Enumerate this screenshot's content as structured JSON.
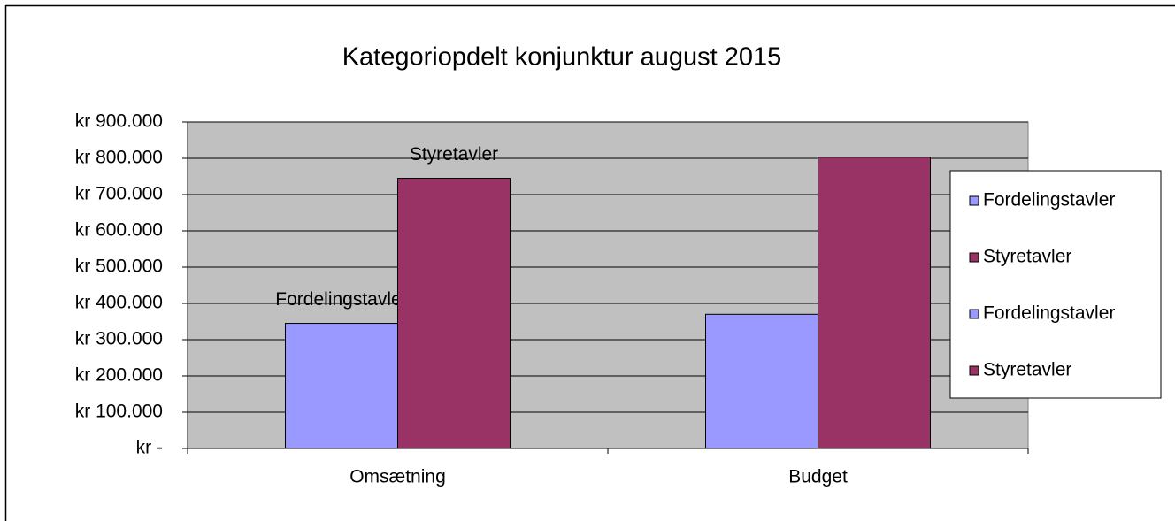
{
  "chart_data": {
    "type": "bar",
    "title": "Kategoriopdelt konjunktur august 2015",
    "categories": [
      "Omsætning",
      "Budget"
    ],
    "series": [
      {
        "name": "Fordelingstavler",
        "color": "#9999ff",
        "values": [
          345000,
          null
        ]
      },
      {
        "name": "Styretavler",
        "color": "#993366",
        "values": [
          745000,
          null
        ]
      },
      {
        "name": "Fordelingstavler",
        "color": "#9999ff",
        "values": [
          null,
          370000
        ]
      },
      {
        "name": "Styretavler",
        "color": "#993366",
        "values": [
          null,
          803000
        ]
      }
    ],
    "ylim": [
      0,
      900000
    ],
    "yticks": [
      {
        "value": 0,
        "label": "kr -"
      },
      {
        "value": 100000,
        "label": "kr 100.000"
      },
      {
        "value": 200000,
        "label": "kr 200.000"
      },
      {
        "value": 300000,
        "label": "kr 300.000"
      },
      {
        "value": 400000,
        "label": "kr 400.000"
      },
      {
        "value": 500000,
        "label": "kr 500.000"
      },
      {
        "value": 600000,
        "label": "kr 600.000"
      },
      {
        "value": 700000,
        "label": "kr 700.000"
      },
      {
        "value": 800000,
        "label": "kr 800.000"
      },
      {
        "value": 900000,
        "label": "kr 900.000"
      }
    ],
    "grid": true,
    "legend": "right"
  }
}
